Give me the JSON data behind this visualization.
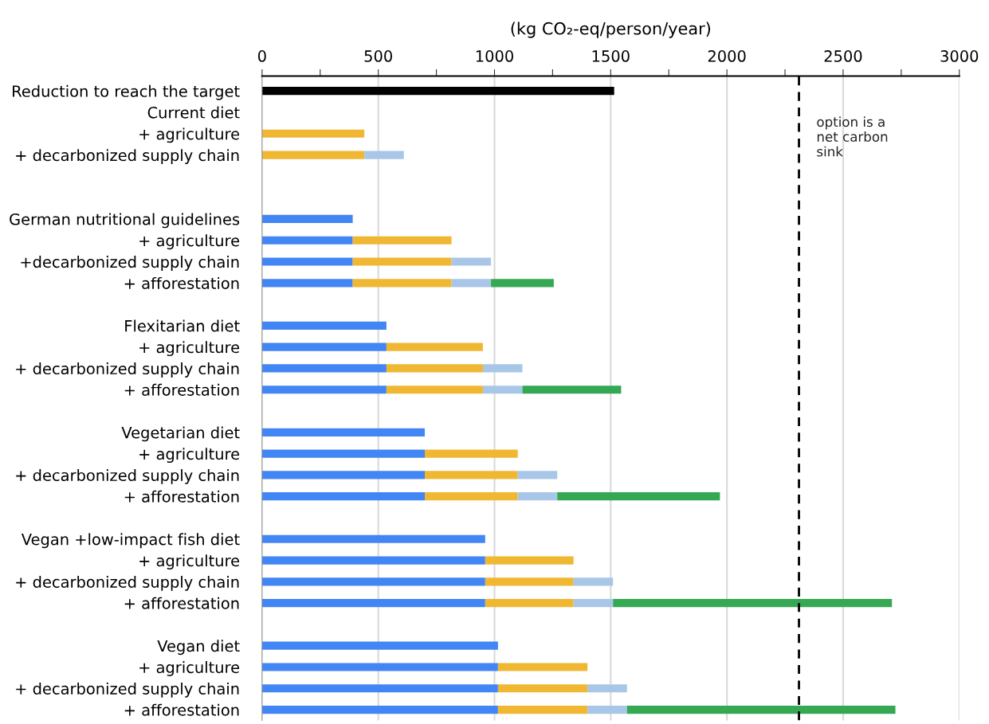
{
  "chart_data": {
    "type": "bar",
    "orientation": "horizontal",
    "stacked": true,
    "xlabel": "(kg CO₂-eq/person/year)",
    "categories": [
      "Reduction to reach the target",
      "Current diet",
      "+ agriculture",
      "+ decarbonized supply chain",
      null,
      null,
      "German nutritional guidelines",
      "+ agriculture",
      "+decarbonized supply chain",
      "+ afforestation",
      null,
      "Flexitarian diet",
      "+ agriculture",
      "+ decarbonized supply chain",
      "+ afforestation",
      null,
      "Vegetarian diet",
      "+ agriculture",
      "+ decarbonized supply chain",
      "+ afforestation",
      null,
      "Vegan +low-impact fish diet",
      "+ agriculture",
      "+ decarbonized supply chain",
      "+ afforestation",
      null,
      "Vegan diet",
      "+ agriculture",
      "+ decarbonized supply chain",
      "+ afforestation"
    ],
    "series": [
      {
        "color": "#000000",
        "values": [
          1515,
          null,
          null,
          null,
          null,
          null,
          null,
          null,
          null,
          null,
          null,
          null,
          null,
          null,
          null,
          null,
          null,
          null,
          null,
          null,
          null,
          null,
          null,
          null,
          null,
          null,
          null,
          null,
          null,
          null
        ]
      },
      {
        "color": "#4285f4",
        "values": [
          null,
          null,
          null,
          null,
          null,
          null,
          390,
          390,
          390,
          390,
          null,
          535,
          535,
          535,
          535,
          null,
          700,
          700,
          700,
          700,
          null,
          960,
          960,
          960,
          960,
          null,
          1015,
          1015,
          1015,
          1015
        ]
      },
      {
        "color": "#f0b732",
        "values": [
          null,
          null,
          440,
          440,
          null,
          null,
          null,
          425,
          425,
          425,
          null,
          null,
          415,
          415,
          415,
          null,
          null,
          400,
          400,
          400,
          null,
          null,
          380,
          380,
          380,
          null,
          null,
          385,
          385,
          385
        ]
      },
      {
        "color": "#a8c7e8",
        "values": [
          null,
          null,
          null,
          170,
          null,
          null,
          null,
          null,
          170,
          170,
          null,
          null,
          null,
          170,
          170,
          null,
          null,
          null,
          170,
          170,
          null,
          null,
          null,
          170,
          170,
          null,
          null,
          null,
          170,
          170
        ]
      },
      {
        "color": "#34a853",
        "values": [
          null,
          null,
          null,
          null,
          null,
          null,
          null,
          null,
          null,
          270,
          null,
          null,
          null,
          null,
          425,
          null,
          null,
          null,
          null,
          700,
          null,
          null,
          null,
          null,
          1200,
          null,
          null,
          null,
          null,
          1155
        ]
      }
    ],
    "xlim": [
      0,
      3000
    ],
    "xticks": [
      0,
      {
        "value": 250,
        "label": null
      },
      500,
      {
        "value": 750,
        "label": null
      },
      1000,
      {
        "value": 1250,
        "label": null
      },
      1500,
      {
        "value": 1750,
        "label": null
      },
      2000,
      {
        "value": 2250,
        "label": null
      },
      2500,
      {
        "value": 2750,
        "label": null
      },
      3000
    ],
    "grid": "x",
    "ref_lines": [
      {
        "axis": "x",
        "value": 2310,
        "label": "option is a\nnet carbon\nsink",
        "color": "#000000",
        "line_style": "dashed"
      }
    ]
  }
}
